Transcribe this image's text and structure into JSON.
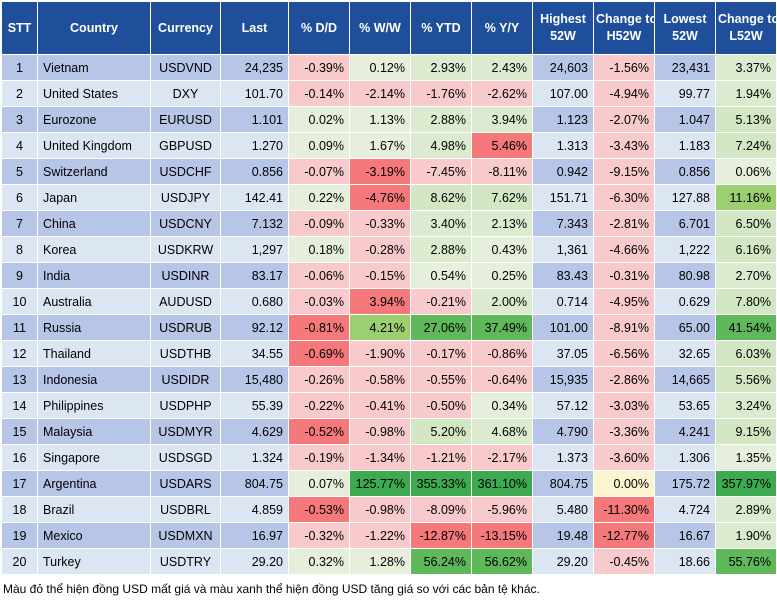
{
  "headers": [
    "STT",
    "Country",
    "Currency",
    "Last",
    "% D/D",
    "% W/W",
    "% YTD",
    "% Y/Y",
    "Highest 52W",
    "Change to H52W",
    "Lowest 52W",
    "Change to L52W"
  ],
  "rows": [
    {
      "stt": "1",
      "country": "Vietnam",
      "currency": "USDVND",
      "last": "24,235",
      "dd": "-0.39%",
      "ww": "0.12%",
      "ytd": "2.93%",
      "yy": "2.43%",
      "h52": "24,603",
      "ch52": "-1.56%",
      "l52": "23,431",
      "cl52": "3.37%"
    },
    {
      "stt": "2",
      "country": "United States",
      "currency": "DXY",
      "last": "101.70",
      "dd": "-0.14%",
      "ww": "-2.14%",
      "ytd": "-1.76%",
      "yy": "-2.62%",
      "h52": "107.00",
      "ch52": "-4.94%",
      "l52": "99.77",
      "cl52": "1.94%"
    },
    {
      "stt": "3",
      "country": "Eurozone",
      "currency": "EURUSD",
      "last": "1.101",
      "dd": "0.02%",
      "ww": "1.13%",
      "ytd": "2.88%",
      "yy": "3.94%",
      "h52": "1.123",
      "ch52": "-2.07%",
      "l52": "1.047",
      "cl52": "5.13%"
    },
    {
      "stt": "4",
      "country": "United Kingdom",
      "currency": "GBPUSD",
      "last": "1.270",
      "dd": "0.09%",
      "ww": "1.67%",
      "ytd": "4.98%",
      "yy": "5.46%",
      "h52": "1.313",
      "ch52": "-3.43%",
      "l52": "1.183",
      "cl52": "7.24%"
    },
    {
      "stt": "5",
      "country": "Switzerland",
      "currency": "USDCHF",
      "last": "0.856",
      "dd": "-0.07%",
      "ww": "-3.19%",
      "ytd": "-7.45%",
      "yy": "-8.11%",
      "h52": "0.942",
      "ch52": "-9.15%",
      "l52": "0.856",
      "cl52": "0.06%"
    },
    {
      "stt": "6",
      "country": "Japan",
      "currency": "USDJPY",
      "last": "142.41",
      "dd": "0.22%",
      "ww": "-4.76%",
      "ytd": "8.62%",
      "yy": "7.62%",
      "h52": "151.71",
      "ch52": "-6.30%",
      "l52": "127.88",
      "cl52": "11.16%"
    },
    {
      "stt": "7",
      "country": "China",
      "currency": "USDCNY",
      "last": "7.132",
      "dd": "-0.09%",
      "ww": "-0.33%",
      "ytd": "3.40%",
      "yy": "2.13%",
      "h52": "7.343",
      "ch52": "-2.81%",
      "l52": "6.701",
      "cl52": "6.50%"
    },
    {
      "stt": "8",
      "country": "Korea",
      "currency": "USDKRW",
      "last": "1,297",
      "dd": "0.18%",
      "ww": "-0.28%",
      "ytd": "2.88%",
      "yy": "0.43%",
      "h52": "1,361",
      "ch52": "-4.66%",
      "l52": "1,222",
      "cl52": "6.16%"
    },
    {
      "stt": "9",
      "country": "India",
      "currency": "USDINR",
      "last": "83.17",
      "dd": "-0.06%",
      "ww": "-0.15%",
      "ytd": "0.54%",
      "yy": "0.25%",
      "h52": "83.43",
      "ch52": "-0.31%",
      "l52": "80.98",
      "cl52": "2.70%"
    },
    {
      "stt": "10",
      "country": "Australia",
      "currency": "AUDUSD",
      "last": "0.680",
      "dd": "-0.03%",
      "ww": "3.94%",
      "ytd": "-0.21%",
      "yy": "2.00%",
      "h52": "0.714",
      "ch52": "-4.95%",
      "l52": "0.629",
      "cl52": "7.80%"
    },
    {
      "stt": "11",
      "country": "Russia",
      "currency": "USDRUB",
      "last": "92.12",
      "dd": "-0.81%",
      "ww": "4.21%",
      "ytd": "27.06%",
      "yy": "37.49%",
      "h52": "101.00",
      "ch52": "-8.91%",
      "l52": "65.00",
      "cl52": "41.54%"
    },
    {
      "stt": "12",
      "country": "Thailand",
      "currency": "USDTHB",
      "last": "34.55",
      "dd": "-0.69%",
      "ww": "-1.90%",
      "ytd": "-0.17%",
      "yy": "-0.86%",
      "h52": "37.05",
      "ch52": "-6.56%",
      "l52": "32.65",
      "cl52": "6.03%"
    },
    {
      "stt": "13",
      "country": "Indonesia",
      "currency": "USDIDR",
      "last": "15,480",
      "dd": "-0.26%",
      "ww": "-0.58%",
      "ytd": "-0.55%",
      "yy": "-0.64%",
      "h52": "15,935",
      "ch52": "-2.86%",
      "l52": "14,665",
      "cl52": "5.56%"
    },
    {
      "stt": "14",
      "country": "Philippines",
      "currency": "USDPHP",
      "last": "55.39",
      "dd": "-0.22%",
      "ww": "-0.41%",
      "ytd": "-0.50%",
      "yy": "0.34%",
      "h52": "57.12",
      "ch52": "-3.03%",
      "l52": "53.65",
      "cl52": "3.24%"
    },
    {
      "stt": "15",
      "country": "Malaysia",
      "currency": "USDMYR",
      "last": "4.629",
      "dd": "-0.52%",
      "ww": "-0.98%",
      "ytd": "5.20%",
      "yy": "4.68%",
      "h52": "4.790",
      "ch52": "-3.36%",
      "l52": "4.241",
      "cl52": "9.15%"
    },
    {
      "stt": "16",
      "country": "Singapore",
      "currency": "USDSGD",
      "last": "1.324",
      "dd": "-0.19%",
      "ww": "-1.34%",
      "ytd": "-1.21%",
      "yy": "-2.17%",
      "h52": "1.373",
      "ch52": "-3.60%",
      "l52": "1.306",
      "cl52": "1.35%"
    },
    {
      "stt": "17",
      "country": "Argentina",
      "currency": "USDARS",
      "last": "804.75",
      "dd": "0.07%",
      "ww": "125.77%",
      "ytd": "355.33%",
      "yy": "361.10%",
      "h52": "804.75",
      "ch52": "0.00%",
      "l52": "175.72",
      "cl52": "357.97%"
    },
    {
      "stt": "18",
      "country": "Brazil",
      "currency": "USDBRL",
      "last": "4.859",
      "dd": "-0.53%",
      "ww": "-0.98%",
      "ytd": "-8.09%",
      "yy": "-5.96%",
      "h52": "5.480",
      "ch52": "-11.30%",
      "l52": "4.724",
      "cl52": "2.89%"
    },
    {
      "stt": "19",
      "country": "Mexico",
      "currency": "USDMXN",
      "last": "16.97",
      "dd": "-0.32%",
      "ww": "-1.22%",
      "ytd": "-12.87%",
      "yy": "-13.15%",
      "h52": "19.48",
      "ch52": "-12.77%",
      "l52": "16.67",
      "cl52": "1.90%"
    },
    {
      "stt": "20",
      "country": "Turkey",
      "currency": "USDTRY",
      "last": "29.20",
      "dd": "0.32%",
      "ww": "1.28%",
      "ytd": "56.24%",
      "yy": "56.62%",
      "h52": "29.20",
      "ch52": "-0.45%",
      "l52": "18.66",
      "cl52": "55.76%"
    }
  ],
  "cell_colors": [
    {
      "dd": "#f9cacb",
      "ww": "#e6efdc",
      "ytd": "#dcebd0",
      "yy": "#dcebd0",
      "ch52": "#f9cacb",
      "cl52": "#dcebd0"
    },
    {
      "dd": "#f9cacb",
      "ww": "#f9cacb",
      "ytd": "#f9cacb",
      "yy": "#f9cacb",
      "ch52": "#f9cacb",
      "cl52": "#dcebd0"
    },
    {
      "dd": "#e6efdc",
      "ww": "#e6efdc",
      "ytd": "#dcebd0",
      "yy": "#dcebd0",
      "ch52": "#f9cacb",
      "cl52": "#d3e7c4"
    },
    {
      "dd": "#e6efdc",
      "ww": "#e6efdc",
      "ytd": "#dcebd0",
      "yy": "#f5787a",
      "ch52": "#f9cacb",
      "cl52": "#d3e7c4"
    },
    {
      "dd": "#f9cacb",
      "ww": "#f5787a",
      "ytd": "#f9cacb",
      "yy": "#f9cacb",
      "ch52": "#f9cacb",
      "cl52": "#e6efdc"
    },
    {
      "dd": "#e6efdc",
      "ww": "#f5787a",
      "ytd": "#d3e7c4",
      "yy": "#d3e7c4",
      "ch52": "#f9cacb",
      "cl52": "#9bcf6f"
    },
    {
      "dd": "#f9cacb",
      "ww": "#f9cacb",
      "ytd": "#dcebd0",
      "yy": "#dcebd0",
      "ch52": "#f9cacb",
      "cl52": "#d3e7c4"
    },
    {
      "dd": "#e6efdc",
      "ww": "#f9cacb",
      "ytd": "#dcebd0",
      "yy": "#e6efdc",
      "ch52": "#f9cacb",
      "cl52": "#d3e7c4"
    },
    {
      "dd": "#f9cacb",
      "ww": "#f9cacb",
      "ytd": "#e6efdc",
      "yy": "#e6efdc",
      "ch52": "#f9cacb",
      "cl52": "#dcebd0"
    },
    {
      "dd": "#f9cacb",
      "ww": "#f5787a",
      "ytd": "#f9cacb",
      "yy": "#dcebd0",
      "ch52": "#f9cacb",
      "cl52": "#d3e7c4"
    },
    {
      "dd": "#f5787a",
      "ww": "#9bcf6f",
      "ytd": "#5fb85a",
      "yy": "#5fb85a",
      "ch52": "#f9cacb",
      "cl52": "#5fb85a"
    },
    {
      "dd": "#f5787a",
      "ww": "#f9cacb",
      "ytd": "#f9cacb",
      "yy": "#f9cacb",
      "ch52": "#f9cacb",
      "cl52": "#d3e7c4"
    },
    {
      "dd": "#f9cacb",
      "ww": "#f9cacb",
      "ytd": "#f9cacb",
      "yy": "#f9cacb",
      "ch52": "#f9cacb",
      "cl52": "#d3e7c4"
    },
    {
      "dd": "#f9cacb",
      "ww": "#f9cacb",
      "ytd": "#f9cacb",
      "yy": "#e6efdc",
      "ch52": "#f9cacb",
      "cl52": "#dcebd0"
    },
    {
      "dd": "#f5787a",
      "ww": "#f9cacb",
      "ytd": "#d3e7c4",
      "yy": "#dcebd0",
      "ch52": "#f9cacb",
      "cl52": "#d3e7c4"
    },
    {
      "dd": "#f9cacb",
      "ww": "#f9cacb",
      "ytd": "#f9cacb",
      "yy": "#f9cacb",
      "ch52": "#f9cacb",
      "cl52": "#e6efdc"
    },
    {
      "dd": "#e6efdc",
      "ww": "#3daa4f",
      "ytd": "#3daa4f",
      "yy": "#3daa4f",
      "ch52": "#fbf4d0",
      "cl52": "#3daa4f"
    },
    {
      "dd": "#f5787a",
      "ww": "#f9cacb",
      "ytd": "#f9cacb",
      "yy": "#f9cacb",
      "ch52": "#f5787a",
      "cl52": "#dcebd0"
    },
    {
      "dd": "#f9cacb",
      "ww": "#f9cacb",
      "ytd": "#f5787a",
      "yy": "#f5787a",
      "ch52": "#f5787a",
      "cl52": "#dcebd0"
    },
    {
      "dd": "#e6efdc",
      "ww": "#e6efdc",
      "ytd": "#5fb85a",
      "yy": "#5fb85a",
      "ch52": "#f9cacb",
      "cl52": "#5fb85a"
    }
  ],
  "footnote": "Màu đỏ thể hiện đồng USD mất giá và màu xanh thể hiện đồng USD tăng giá so với các bản tệ khác."
}
